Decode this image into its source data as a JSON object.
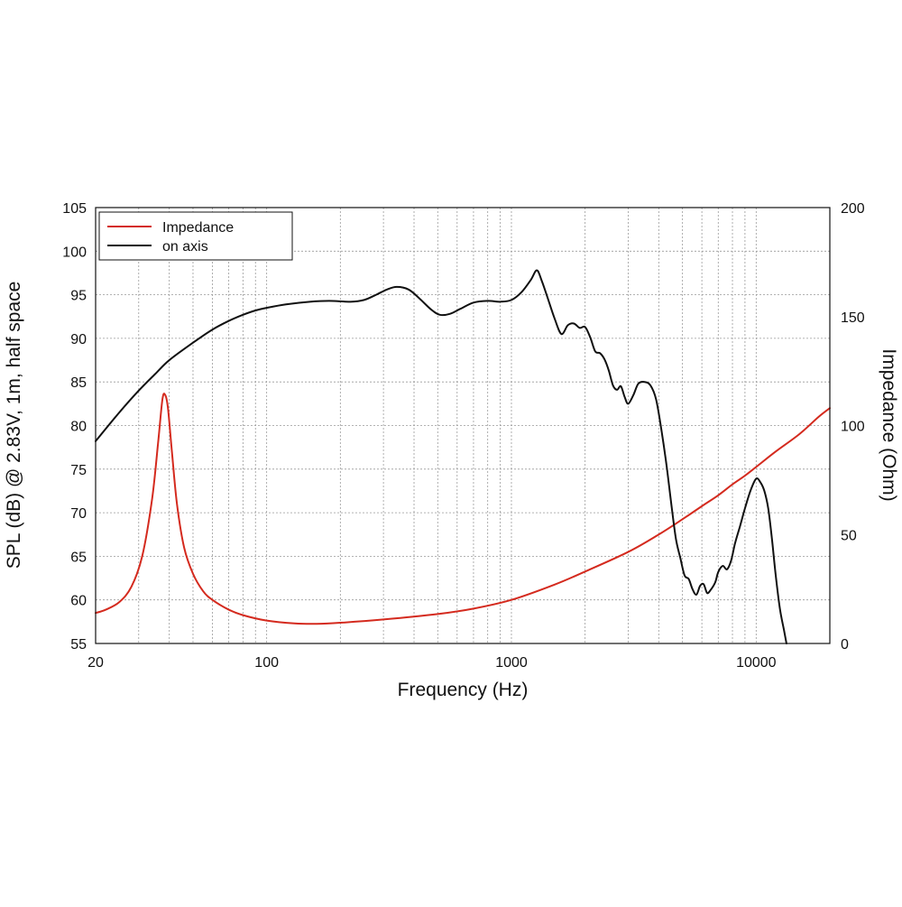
{
  "chart_data": {
    "type": "line",
    "xlabel": "Frequency (Hz)",
    "ylabel": "SPL (dB) @ 2.83V, 1m, half space",
    "y2label": "Impedance (Ohm)",
    "x_scale": "log",
    "xlim": [
      20,
      20000
    ],
    "ylim": [
      55,
      105
    ],
    "y2lim": [
      0,
      200
    ],
    "x_ticks": [
      20,
      100,
      1000,
      10000
    ],
    "x_tick_labels": [
      "20",
      "100",
      "1000",
      "10000"
    ],
    "y_ticks": [
      55,
      60,
      65,
      70,
      75,
      80,
      85,
      90,
      95,
      100,
      105
    ],
    "y_tick_labels": [
      "55",
      "60",
      "65",
      "70",
      "75",
      "80",
      "85",
      "90",
      "95",
      "100",
      "105"
    ],
    "y2_ticks": [
      0,
      50,
      100,
      150,
      200
    ],
    "y2_tick_labels": [
      "0",
      "50",
      "100",
      "150",
      "200"
    ],
    "grid": true,
    "legend_position": "top-left",
    "series": [
      {
        "name": "Impedance",
        "axis": "right",
        "color": "#d42a1e",
        "points": [
          [
            20,
            14
          ],
          [
            22,
            15.5
          ],
          [
            25,
            19
          ],
          [
            28,
            26
          ],
          [
            31,
            40
          ],
          [
            34,
            66
          ],
          [
            36,
            92
          ],
          [
            37.5,
            112
          ],
          [
            38.5,
            114
          ],
          [
            39.5,
            108
          ],
          [
            41,
            88
          ],
          [
            43,
            64
          ],
          [
            46,
            44
          ],
          [
            50,
            32
          ],
          [
            55,
            24
          ],
          [
            60,
            20
          ],
          [
            70,
            15.5
          ],
          [
            80,
            13
          ],
          [
            100,
            10.5
          ],
          [
            130,
            9.2
          ],
          [
            160,
            9
          ],
          [
            200,
            9.5
          ],
          [
            300,
            11
          ],
          [
            500,
            13.5
          ],
          [
            700,
            16
          ],
          [
            1000,
            20
          ],
          [
            1500,
            27
          ],
          [
            2000,
            33
          ],
          [
            3000,
            42
          ],
          [
            4000,
            50
          ],
          [
            5000,
            57
          ],
          [
            6000,
            63
          ],
          [
            7000,
            68
          ],
          [
            8000,
            73
          ],
          [
            9000,
            77
          ],
          [
            10000,
            81
          ],
          [
            12000,
            88
          ],
          [
            15000,
            96
          ],
          [
            18000,
            104
          ],
          [
            20000,
            108
          ]
        ]
      },
      {
        "name": "on axis",
        "axis": "left",
        "color": "#111111",
        "points": [
          [
            20,
            78.2
          ],
          [
            25,
            81.5
          ],
          [
            30,
            84
          ],
          [
            35,
            85.9
          ],
          [
            40,
            87.5
          ],
          [
            50,
            89.5
          ],
          [
            60,
            91
          ],
          [
            70,
            92
          ],
          [
            80,
            92.7
          ],
          [
            90,
            93.2
          ],
          [
            100,
            93.5
          ],
          [
            120,
            93.9
          ],
          [
            150,
            94.2
          ],
          [
            180,
            94.3
          ],
          [
            220,
            94.2
          ],
          [
            250,
            94.4
          ],
          [
            280,
            95
          ],
          [
            310,
            95.6
          ],
          [
            340,
            95.9
          ],
          [
            380,
            95.6
          ],
          [
            420,
            94.6
          ],
          [
            470,
            93.3
          ],
          [
            510,
            92.7
          ],
          [
            560,
            92.8
          ],
          [
            620,
            93.4
          ],
          [
            700,
            94.1
          ],
          [
            800,
            94.3
          ],
          [
            900,
            94.2
          ],
          [
            1000,
            94.4
          ],
          [
            1100,
            95.3
          ],
          [
            1200,
            96.7
          ],
          [
            1270,
            97.8
          ],
          [
            1330,
            96.6
          ],
          [
            1400,
            94.8
          ],
          [
            1500,
            92.3
          ],
          [
            1600,
            90.5
          ],
          [
            1700,
            91.5
          ],
          [
            1800,
            91.7
          ],
          [
            1900,
            91.2
          ],
          [
            2000,
            91.3
          ],
          [
            2100,
            90.1
          ],
          [
            2200,
            88.5
          ],
          [
            2300,
            88.3
          ],
          [
            2400,
            87.6
          ],
          [
            2500,
            86.3
          ],
          [
            2600,
            84.6
          ],
          [
            2700,
            84.1
          ],
          [
            2800,
            84.5
          ],
          [
            2900,
            83.3
          ],
          [
            3000,
            82.5
          ],
          [
            3150,
            83.5
          ],
          [
            3300,
            84.8
          ],
          [
            3500,
            85
          ],
          [
            3700,
            84.6
          ],
          [
            3900,
            83
          ],
          [
            4100,
            79.5
          ],
          [
            4300,
            75.5
          ],
          [
            4500,
            71
          ],
          [
            4700,
            67
          ],
          [
            4900,
            64.8
          ],
          [
            5100,
            62.8
          ],
          [
            5300,
            62.4
          ],
          [
            5500,
            61.2
          ],
          [
            5700,
            60.6
          ],
          [
            5900,
            61.6
          ],
          [
            6100,
            61.8
          ],
          [
            6300,
            60.8
          ],
          [
            6500,
            61.1
          ],
          [
            6800,
            62
          ],
          [
            7000,
            63.2
          ],
          [
            7300,
            63.9
          ],
          [
            7600,
            63.5
          ],
          [
            7900,
            64.5
          ],
          [
            8200,
            66.5
          ],
          [
            8600,
            68.5
          ],
          [
            9000,
            70.5
          ],
          [
            9500,
            72.6
          ],
          [
            10000,
            73.9
          ],
          [
            10400,
            73.5
          ],
          [
            10800,
            72.5
          ],
          [
            11200,
            70.5
          ],
          [
            11600,
            67
          ],
          [
            12000,
            63
          ],
          [
            12500,
            59
          ],
          [
            13000,
            56.5
          ],
          [
            13300,
            55
          ]
        ]
      }
    ]
  }
}
